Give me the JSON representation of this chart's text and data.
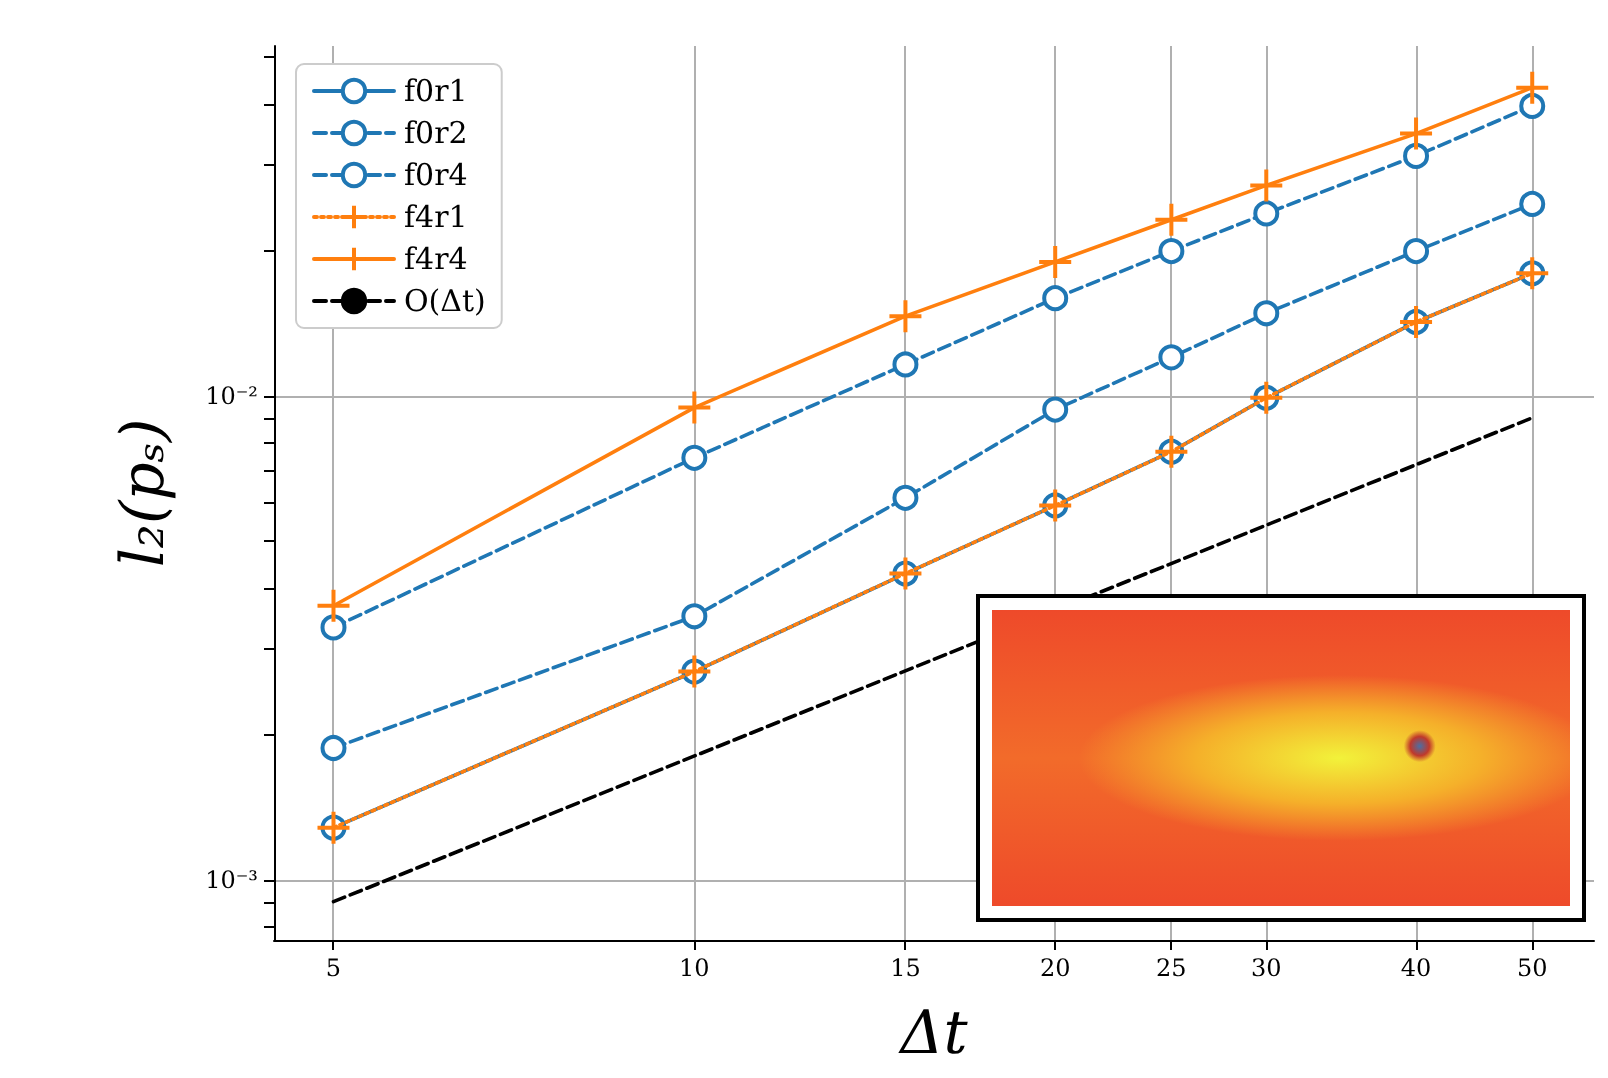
{
  "chart_data": {
    "type": "line",
    "xlabel": "Δt",
    "ylabel": "l₂(pₛ)",
    "log": "xy",
    "grid": true,
    "legend": "top left",
    "x": [
      5,
      10,
      15,
      20,
      25,
      30,
      40,
      50
    ],
    "xlim": [
      4.46,
      56.3
    ],
    "xticks": [
      5,
      10,
      15,
      20,
      25,
      30,
      40,
      50
    ],
    "ylim": [
      0.00075,
      0.0528
    ],
    "yticks": [
      {
        "value": 0.0008,
        "label": null
      },
      {
        "value": 0.0009,
        "label": null
      },
      {
        "value": 0.001,
        "label": "10⁻³"
      },
      {
        "value": 0.002,
        "label": null
      },
      {
        "value": 0.003,
        "label": null
      },
      {
        "value": 0.004,
        "label": null
      },
      {
        "value": 0.005,
        "label": null
      },
      {
        "value": 0.006,
        "label": null
      },
      {
        "value": 0.007,
        "label": null
      },
      {
        "value": 0.008,
        "label": null
      },
      {
        "value": 0.009,
        "label": null
      },
      {
        "value": 0.01,
        "label": "10⁻²"
      },
      {
        "value": 0.02,
        "label": null
      },
      {
        "value": 0.03,
        "label": null
      },
      {
        "value": 0.04,
        "label": null
      },
      {
        "value": 0.05,
        "label": null
      }
    ],
    "series": [
      {
        "name": "f0r1",
        "color": "#1f77b4",
        "marker": "circle",
        "line_style": "solid",
        "values": [
          0.00128,
          0.00269,
          0.00429,
          0.00593,
          0.00766,
          0.0099,
          0.0142,
          0.0179
        ]
      },
      {
        "name": "f0r2",
        "color": "#1f77b4",
        "marker": "circle",
        "line_style": "dashed",
        "values": [
          0.00187,
          0.0035,
          0.00615,
          0.00936,
          0.012,
          0.0148,
          0.0199,
          0.0249
        ]
      },
      {
        "name": "f0r4",
        "color": "#1f77b4",
        "marker": "circle",
        "line_style": "dashed",
        "values": [
          0.00332,
          0.00744,
          0.0116,
          0.0159,
          0.0199,
          0.0238,
          0.0313,
          0.0397
        ]
      },
      {
        "name": "f4r1",
        "color": "#ff7f0e",
        "marker": "cross",
        "line_style": "dotted",
        "values": [
          0.00128,
          0.00269,
          0.00429,
          0.00593,
          0.00766,
          0.0099,
          0.0142,
          0.0179
        ]
      },
      {
        "name": "f4r4",
        "color": "#ff7f0e",
        "marker": "cross",
        "line_style": "solid",
        "values": [
          0.00368,
          0.00945,
          0.0146,
          0.0189,
          0.0231,
          0.0272,
          0.0348,
          0.0433
        ]
      },
      {
        "name": "O(Δt)",
        "color": "#000000",
        "marker": "none",
        "line_style": "dashed",
        "x": [
          5,
          50
        ],
        "values": [
          0.0009,
          0.009
        ]
      }
    ]
  }
}
